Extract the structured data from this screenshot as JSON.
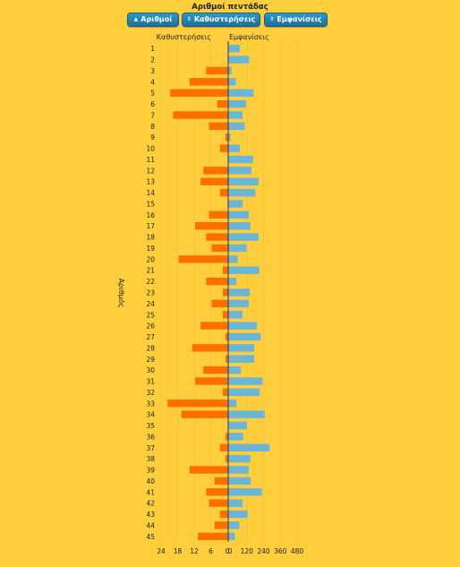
{
  "title": "Αριθμοί πεντάδας",
  "buttons": {
    "sort_numbers": "Αριθμοί",
    "sort_delays": "Καθυστερήσεις",
    "sort_appearances": "Εμφανίσεις"
  },
  "colors": {
    "background": "#FFCE3D",
    "delay_bar": "#FF6F00",
    "appearance_bar": "#6BB5D8",
    "button": "#2486B3"
  },
  "chart_data": {
    "type": "bar",
    "orientation": "horizontal-butterfly",
    "ylabel": "Αριθμός",
    "categories": [
      "1",
      "2",
      "3",
      "4",
      "5",
      "6",
      "7",
      "8",
      "9",
      "10",
      "11",
      "12",
      "13",
      "14",
      "15",
      "16",
      "17",
      "18",
      "19",
      "20",
      "21",
      "22",
      "23",
      "24",
      "25",
      "26",
      "27",
      "28",
      "29",
      "30",
      "31",
      "32",
      "33",
      "34",
      "35",
      "36",
      "37",
      "38",
      "39",
      "40",
      "41",
      "42",
      "43",
      "44",
      "45"
    ],
    "series": [
      {
        "name": "Καθυστερήσεις",
        "side": "left",
        "axis_ticks": [
          "24",
          "18",
          "12",
          "6",
          "0"
        ],
        "xlim": [
          0,
          24
        ],
        "values": [
          0,
          0,
          8,
          14,
          21,
          4,
          20,
          7,
          1,
          3,
          0,
          9,
          10,
          3,
          0,
          7,
          12,
          8,
          6,
          18,
          2,
          8,
          2,
          6,
          2,
          10,
          1,
          13,
          1,
          9,
          12,
          2,
          22,
          17,
          0,
          1,
          3,
          1,
          14,
          5,
          8,
          7,
          3,
          5,
          11
        ]
      },
      {
        "name": "Εμφανίσεις",
        "side": "right",
        "axis_ticks": [
          "0",
          "120",
          "240",
          "360",
          "480"
        ],
        "xlim": [
          0,
          480
        ],
        "values": [
          105,
          190,
          30,
          70,
          230,
          160,
          130,
          150,
          20,
          105,
          225,
          210,
          275,
          245,
          130,
          185,
          200,
          275,
          165,
          85,
          280,
          75,
          195,
          185,
          130,
          260,
          295,
          235,
          235,
          115,
          310,
          285,
          75,
          330,
          170,
          135,
          375,
          200,
          185,
          205,
          305,
          130,
          175,
          100,
          60
        ]
      }
    ]
  }
}
